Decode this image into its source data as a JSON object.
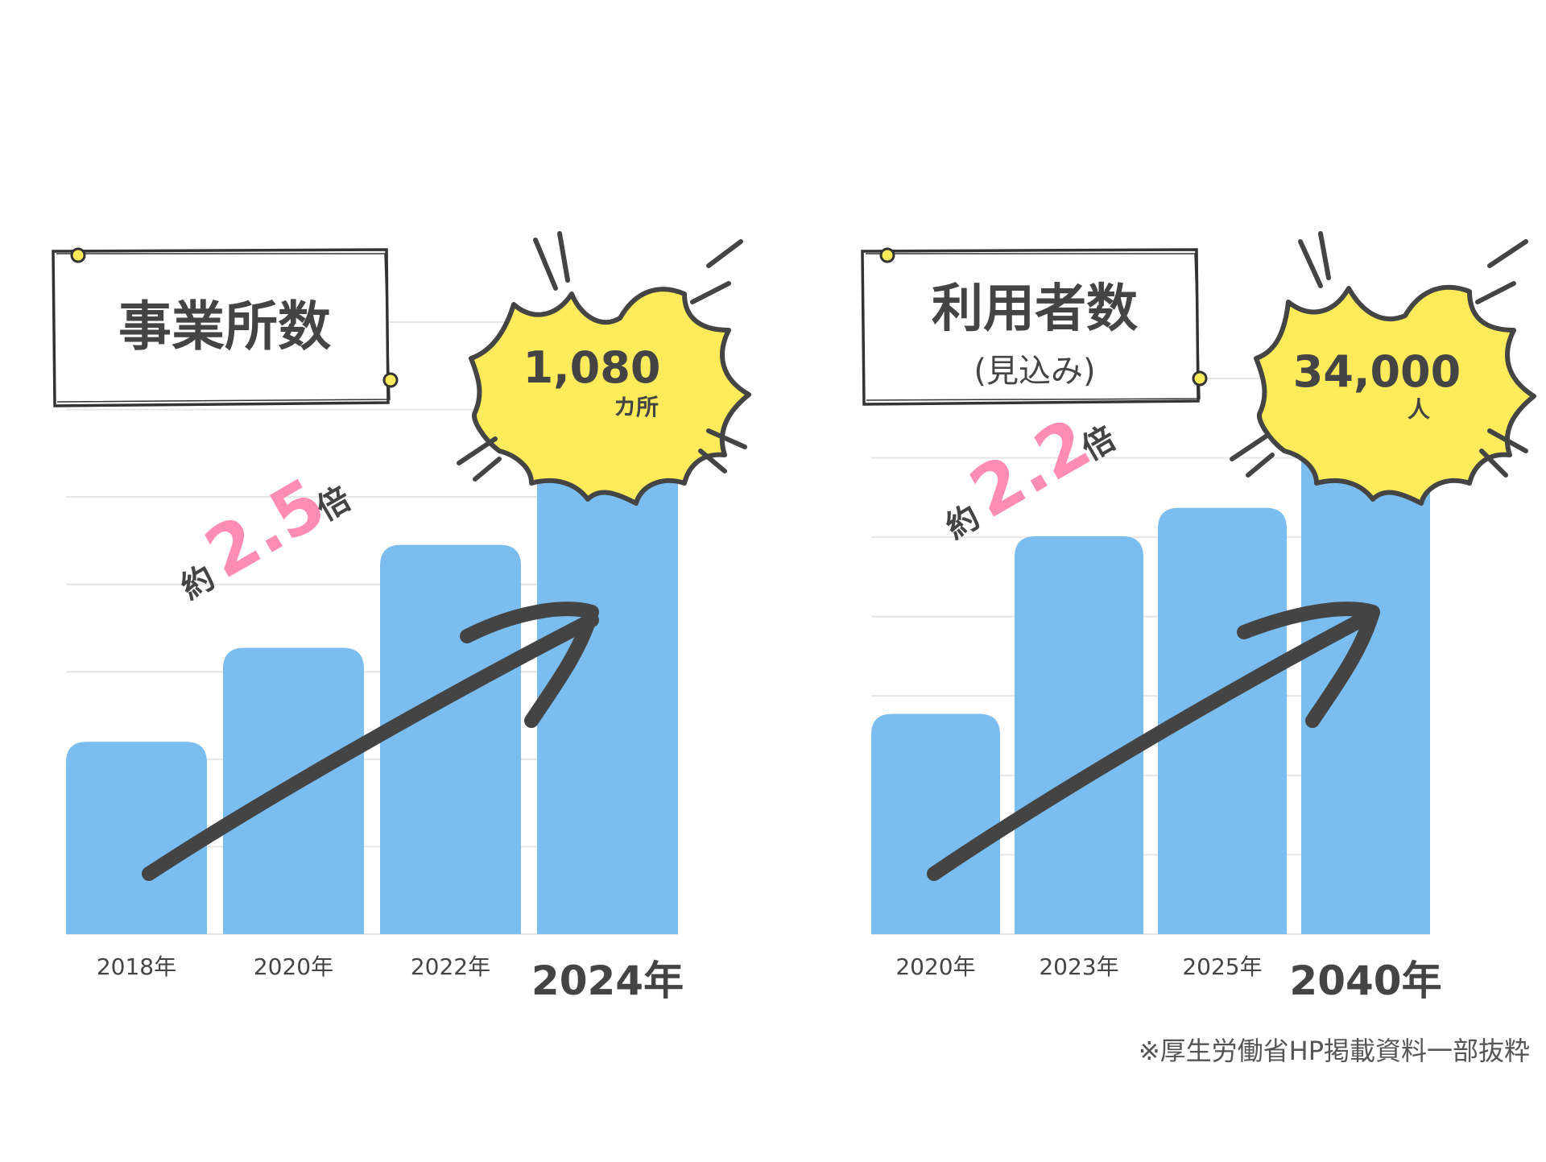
{
  "charts": [
    {
      "title": "事業所数",
      "subtitle": "",
      "growth": {
        "prefix": "約",
        "value": "2.5",
        "suffix": "倍"
      },
      "burst": {
        "value": "1,080",
        "unit": "カ所"
      },
      "colors": {
        "bar": "#7bbdef",
        "burst": "#fdeb5c",
        "growth": "#ff8db3",
        "arrow": "#444444",
        "pin": "#fdeb5c"
      }
    },
    {
      "title": "利用者数",
      "subtitle": "(見込み)",
      "growth": {
        "prefix": "約",
        "value": "2.2",
        "suffix": "倍"
      },
      "burst": {
        "value": "34,000",
        "unit": "人"
      },
      "colors": {
        "bar": "#7bbdef",
        "burst": "#fdeb5c",
        "growth": "#ff8db3",
        "arrow": "#444444",
        "pin": "#fdeb5c"
      }
    }
  ],
  "chart_data": [
    {
      "type": "bar",
      "title": "事業所数",
      "categories": [
        "2018年",
        "2020年",
        "2022年",
        "2024年"
      ],
      "values": [
        430,
        640,
        870,
        1080
      ],
      "highlight_index": 3,
      "ylim": [
        0,
        1080
      ],
      "grid": true,
      "xlabel": "",
      "ylabel": ""
    },
    {
      "type": "bar",
      "title": "利用者数 (見込み)",
      "categories": [
        "2020年",
        "2023年",
        "2025年",
        "2040年"
      ],
      "values": [
        15500,
        28000,
        30000,
        34000
      ],
      "highlight_index": 3,
      "ylim": [
        0,
        34000
      ],
      "grid": true,
      "xlabel": "",
      "ylabel": ""
    }
  ],
  "footnote": "※厚生労働省HP掲載資料一部抜粋"
}
